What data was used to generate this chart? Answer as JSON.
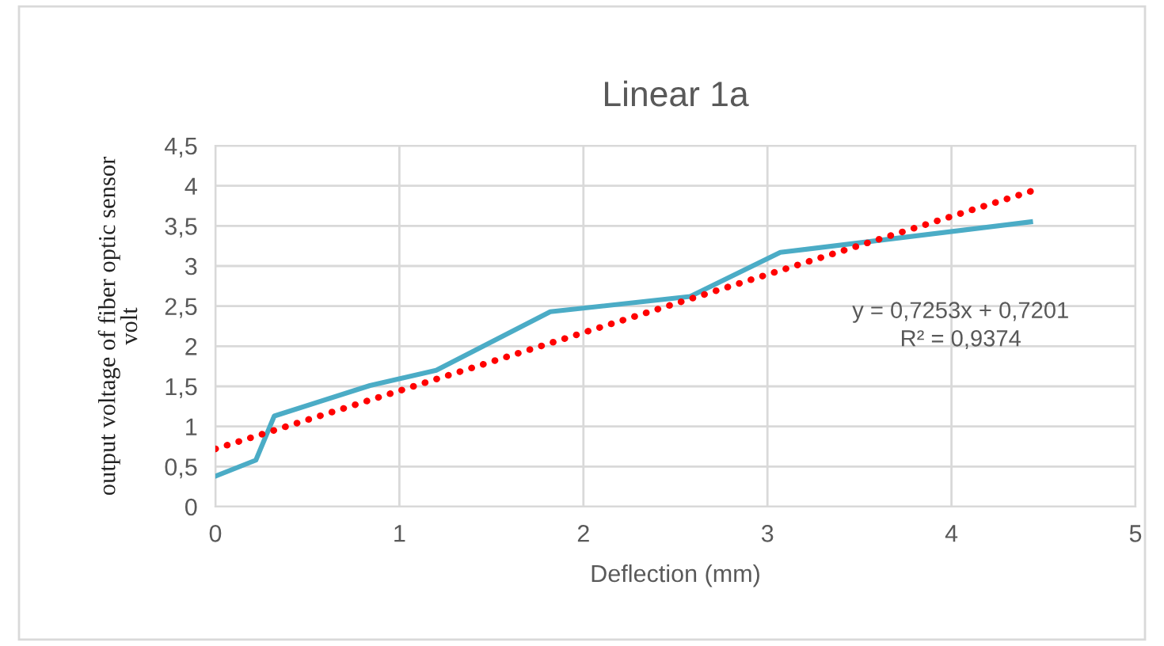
{
  "chart_data": {
    "type": "line",
    "title": "Linear 1a",
    "xlabel": "Deflection (mm)",
    "ylabel": "output voltage of fiber optic sensor\nvolt",
    "x": [
      0,
      0.22,
      0.32,
      0.84,
      1.2,
      1.82,
      2.58,
      3.07,
      4.43
    ],
    "series": [
      {
        "color": "#4bacc6",
        "line_style": "solid",
        "values": [
          0.38,
          0.58,
          1.13,
          1.51,
          1.7,
          2.43,
          2.62,
          3.17,
          3.55
        ]
      },
      {
        "color": "#ff0000",
        "line_style": "dotted",
        "x": [
          0,
          4.43
        ],
        "values": [
          0.72,
          3.93
        ]
      }
    ],
    "xlim": [
      0,
      5
    ],
    "xticks": [
      0,
      1,
      2,
      3,
      4,
      5
    ],
    "ylim": [
      0,
      4.5
    ],
    "yticks": [
      0,
      {
        "value": 0.5,
        "label": "0,5"
      },
      1,
      {
        "value": 1.5,
        "label": "1,5"
      },
      2,
      {
        "value": 2.5,
        "label": "2,5"
      },
      3,
      {
        "value": 3.5,
        "label": "3,5"
      },
      4,
      {
        "value": 4.5,
        "label": "4,5"
      }
    ],
    "grid": true,
    "legend": false,
    "annotations": [
      "y = 0,7253x + 0,7201\nR² = 0,9374"
    ]
  }
}
